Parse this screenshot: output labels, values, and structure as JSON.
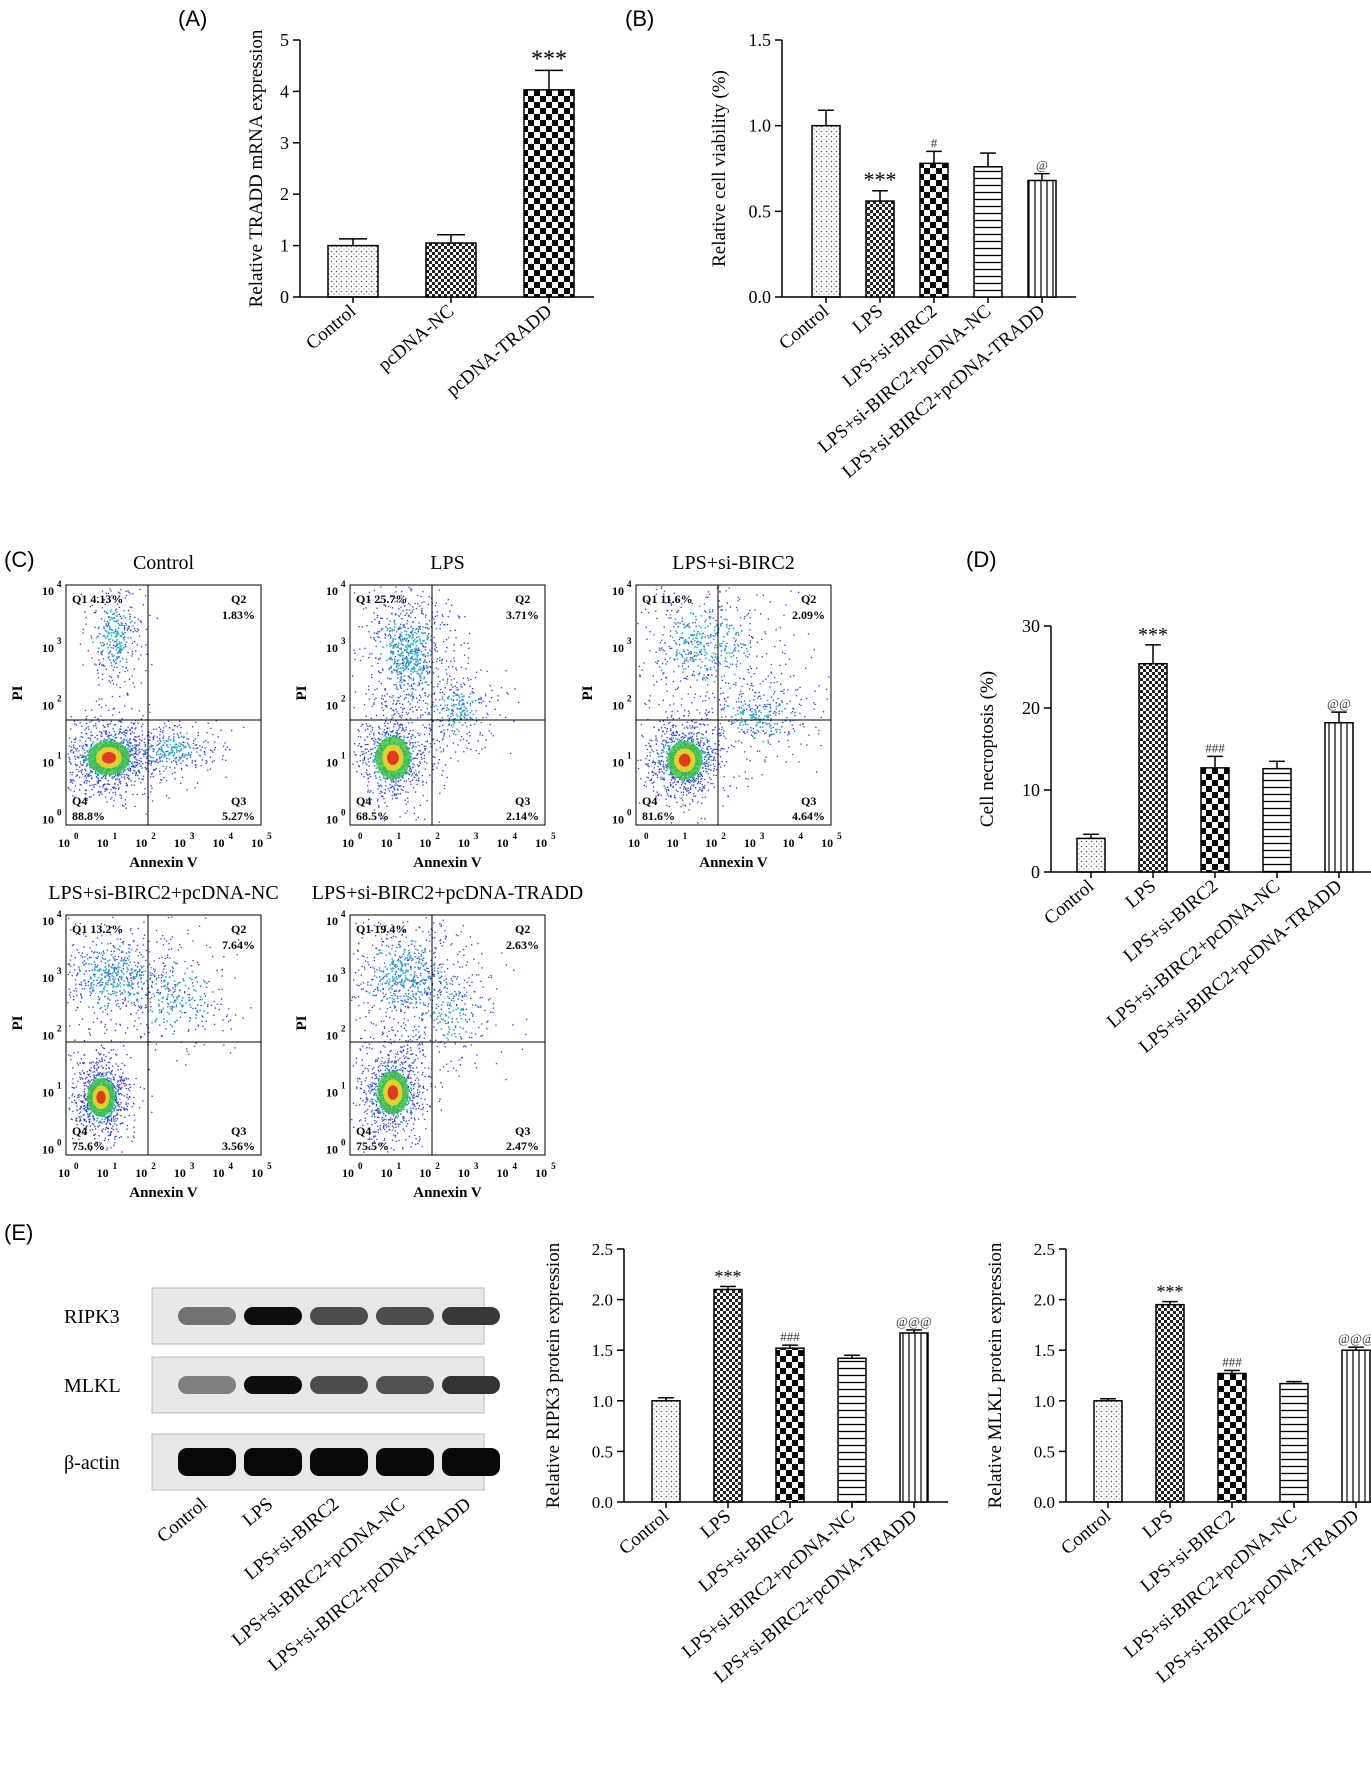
{
  "panels": {
    "A": "(A)",
    "B": "(B)",
    "C": "(C)",
    "D": "(D)",
    "E": "(E)"
  },
  "chart_data": [
    {
      "id": "A",
      "type": "bar",
      "ylabel": "Relative TRADD mRNA expression",
      "ylim": [
        0,
        5
      ],
      "yticks": [
        0,
        1,
        2,
        3,
        4,
        5
      ],
      "categories": [
        "Control",
        "pcDNA-NC",
        "pcDNA-TRADD"
      ],
      "values": [
        1.0,
        1.05,
        4.03
      ],
      "errors": [
        0.13,
        0.16,
        0.38
      ],
      "annotations": [
        "",
        "",
        "***"
      ],
      "patterns": [
        "dots",
        "dense-check",
        "checker"
      ]
    },
    {
      "id": "B",
      "type": "bar",
      "ylabel": "Relative cell viability (%)",
      "ylim": [
        0,
        1.5
      ],
      "yticks": [
        "0.0",
        "0.5",
        "1.0",
        "1.5"
      ],
      "categories": [
        "Control",
        "LPS",
        "LPS+si-BIRC2",
        "LPS+si-BIRC2+pcDNA-NC",
        "LPS+si-BIRC2+pcDNA-TRADD"
      ],
      "values": [
        1.0,
        0.56,
        0.78,
        0.76,
        0.68
      ],
      "errors": [
        0.09,
        0.06,
        0.07,
        0.08,
        0.04
      ],
      "annotations": [
        "",
        "***",
        "#",
        "",
        "@"
      ],
      "patterns": [
        "dots",
        "dense-check",
        "checker",
        "hlines",
        "vlines"
      ]
    },
    {
      "id": "D",
      "type": "bar",
      "ylabel": "Cell necroptosis (%)",
      "ylim": [
        0,
        30
      ],
      "yticks": [
        0,
        10,
        20,
        30
      ],
      "categories": [
        "Control",
        "LPS",
        "LPS+si-BIRC2",
        "LPS+si-BIRC2+pcDNA-NC",
        "LPS+si-BIRC2+pcDNA-TRADD"
      ],
      "values": [
        4.1,
        25.4,
        12.7,
        12.6,
        18.2
      ],
      "errors": [
        0.5,
        2.3,
        1.4,
        0.9,
        1.3
      ],
      "annotations": [
        "",
        "***",
        "###",
        "",
        "@@"
      ],
      "patterns": [
        "dots",
        "dense-check",
        "checker",
        "hlines",
        "vlines"
      ]
    },
    {
      "id": "E2",
      "type": "bar",
      "ylabel": "Relative RIPK3 protein expression",
      "ylim": [
        0,
        2.5
      ],
      "yticks": [
        "0.0",
        "0.5",
        "1.0",
        "1.5",
        "2.0",
        "2.5"
      ],
      "categories": [
        "Control",
        "LPS",
        "LPS+si-BIRC2",
        "LPS+si-BIRC2+pcDNA-NC",
        "LPS+si-BIRC2+pcDNA-TRADD"
      ],
      "values": [
        1.0,
        2.1,
        1.52,
        1.42,
        1.67
      ],
      "errors": [
        0.03,
        0.03,
        0.03,
        0.03,
        0.03
      ],
      "annotations": [
        "",
        "***",
        "###",
        "",
        "@@@"
      ],
      "patterns": [
        "dots",
        "dense-check",
        "checker",
        "hlines",
        "vlines"
      ]
    },
    {
      "id": "E3",
      "type": "bar",
      "ylabel": "Relative MLKL protein expression",
      "ylim": [
        0,
        2.5
      ],
      "yticks": [
        "0.0",
        "0.5",
        "1.0",
        "1.5",
        "2.0",
        "2.5"
      ],
      "categories": [
        "Control",
        "LPS",
        "LPS+si-BIRC2",
        "LPS+si-BIRC2+pcDNA-NC",
        "LPS+si-BIRC2+pcDNA-TRADD"
      ],
      "values": [
        1.0,
        1.95,
        1.27,
        1.17,
        1.5
      ],
      "errors": [
        0.02,
        0.03,
        0.03,
        0.02,
        0.03
      ],
      "annotations": [
        "",
        "***",
        "###",
        "",
        "@@@"
      ],
      "patterns": [
        "dots",
        "dense-check",
        "checker",
        "hlines",
        "vlines"
      ]
    },
    {
      "id": "C",
      "type": "scatter",
      "xlabel": "Annexin V",
      "ylabel": "PI",
      "xticks": [
        "0",
        "1",
        "2",
        "3",
        "4",
        "5"
      ],
      "plots": [
        {
          "title": "Control",
          "q1": "Q1  4.13%",
          "q2": "Q2",
          "q2v": "1.83%",
          "q3": "Q3",
          "q3v": "5.27%",
          "q4": "Q4",
          "q4v": "88.8%"
        },
        {
          "title": "LPS",
          "q1": "Q1  25.7%",
          "q2": "Q2",
          "q2v": "3.71%",
          "q3": "Q3",
          "q3v": "2.14%",
          "q4": "Q4",
          "q4v": "68.5%"
        },
        {
          "title": "LPS+si-BIRC2",
          "q1": "Q1  11.6%",
          "q2": "Q2",
          "q2v": "2.09%",
          "q3": "Q3",
          "q3v": "4.64%",
          "q4": "Q4",
          "q4v": "81.6%"
        },
        {
          "title": "LPS+si-BIRC2+pcDNA-NC",
          "q1": "Q1  13.2%",
          "q2": "Q2",
          "q2v": "7.64%",
          "q3": "Q3",
          "q3v": "3.56%",
          "q4": "Q4",
          "q4v": "75.6%"
        },
        {
          "title": "LPS+si-BIRC2+pcDNA-TRADD",
          "q1": "Q1  19.4%",
          "q2": "Q2",
          "q2v": "2.63%",
          "q3": "Q3",
          "q3v": "2.47%",
          "q4": "Q4",
          "q4v": "75.5%"
        }
      ]
    }
  ],
  "blot": {
    "bands": [
      "RIPK3",
      "MLKL",
      "β-actin"
    ],
    "lanes": [
      "Control",
      "LPS",
      "LPS+si-BIRC2",
      "LPS+si-BIRC2+pcDNA-NC",
      "LPS+si-BIRC2+pcDNA-TRADD"
    ],
    "intensity": [
      [
        0.55,
        0.95,
        0.7,
        0.7,
        0.78
      ],
      [
        0.5,
        0.95,
        0.7,
        0.68,
        0.8
      ],
      [
        0.97,
        0.97,
        0.97,
        0.97,
        0.97
      ]
    ]
  }
}
